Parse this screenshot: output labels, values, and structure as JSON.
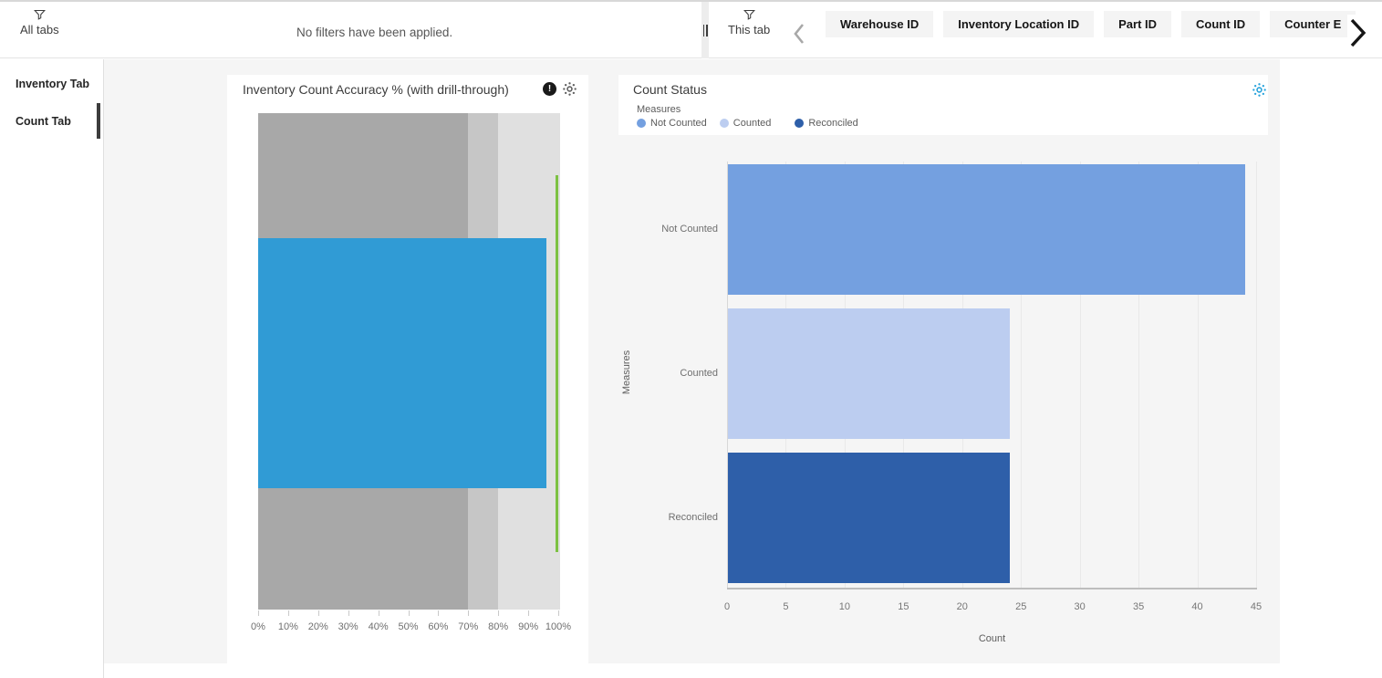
{
  "topbar": {
    "all_tabs": {
      "label": "All tabs",
      "icon": "filter-funnel-icon"
    },
    "filters_message": "No filters have been applied.",
    "this_tab": {
      "label": "This tab",
      "icon": "filter-funnel-icon"
    },
    "filter_chips": [
      "Warehouse ID",
      "Inventory Location ID",
      "Part ID",
      "Count ID",
      "Counter E"
    ],
    "scroll_icons": {
      "left": "chevron-left-icon",
      "right": "chevron-right-icon"
    }
  },
  "sidebar": {
    "tabs": [
      {
        "label": "Inventory Tab",
        "active": false
      },
      {
        "label": "Count Tab",
        "active": true
      }
    ]
  },
  "cards": {
    "bullet": {
      "title": "Inventory Count Accuracy % (with drill-through)",
      "info_icon_glyph": "!",
      "icons": [
        "info-icon",
        "insights-sparkle-icon"
      ]
    },
    "bar": {
      "title": "Count Status",
      "icons": [
        "insights-sparkle-icon"
      ]
    }
  },
  "colors": {
    "canvas_bg": "#f5f5f5",
    "card_bg": "#ffffff",
    "chip_bg": "#f4f4f4",
    "active_tab_bar": "#3d3d3d",
    "sparkle_gray": "#5f5f5f",
    "sparkle_blue": "#29a3dc"
  },
  "chart_data": [
    {
      "type": "bullet",
      "title": "Inventory Count Accuracy % (with drill-through)",
      "value_percent": 96,
      "target_percent": 100,
      "value_color": "#309bd5",
      "target_color": "#7cc142",
      "ranges": [
        {
          "to": 70,
          "color": "#a8a8a8"
        },
        {
          "to": 80,
          "color": "#c6c6c6"
        },
        {
          "to": 100,
          "color": "#e0e0e0"
        }
      ],
      "xlim": [
        0,
        100
      ],
      "xticks": [
        "0%",
        "10%",
        "20%",
        "30%",
        "40%",
        "50%",
        "60%",
        "70%",
        "80%",
        "90%",
        "100%"
      ],
      "grid": false
    },
    {
      "type": "bar",
      "orientation": "horizontal",
      "title": "Count Status",
      "legend_title": "Measures",
      "legend_position": "top-left",
      "categories": [
        "Not Counted",
        "Counted",
        "Reconciled"
      ],
      "values": [
        44,
        24,
        24
      ],
      "bar_colors": [
        "#74a0e0",
        "#bccdf0",
        "#2e5fa9"
      ],
      "xlabel": "Count",
      "ylabel": "Measures",
      "xlim": [
        0,
        45
      ],
      "xticks": [
        0,
        5,
        10,
        15,
        20,
        25,
        30,
        35,
        40,
        45
      ],
      "grid": true
    }
  ]
}
